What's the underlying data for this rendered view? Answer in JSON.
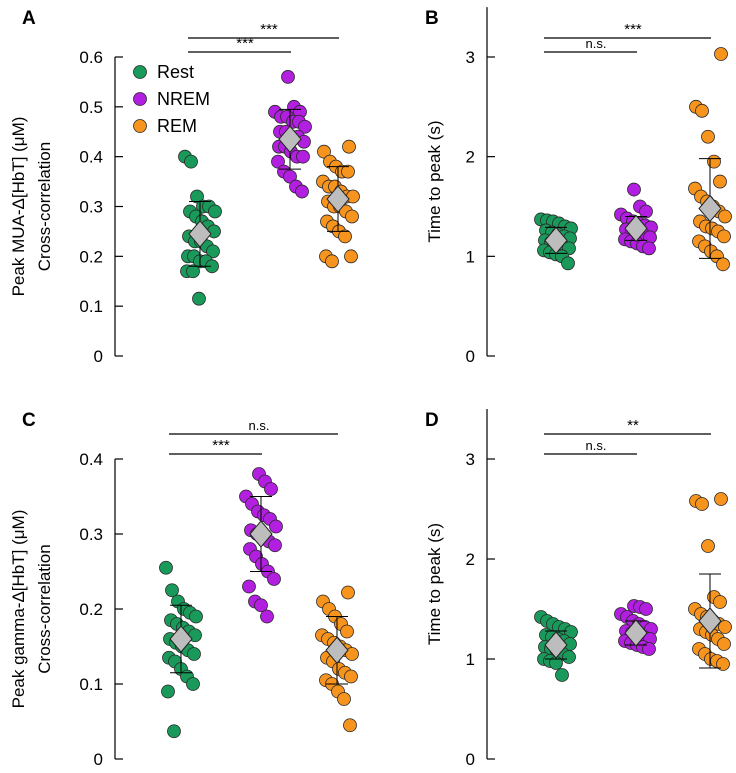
{
  "colors": {
    "rest": "#1a9a5a",
    "nrem": "#b21fe0",
    "rem": "#f7941d",
    "mean_marker": "#bdbdbd",
    "axis": "#000000"
  },
  "legend": {
    "entries": [
      {
        "label": "Rest",
        "color": "#1a9a5a"
      },
      {
        "label": "NREM",
        "color": "#b21fe0"
      },
      {
        "label": "REM",
        "color": "#f7941d"
      }
    ]
  },
  "chart_data": [
    {
      "panel_label": "A",
      "type": "scatter",
      "ylabel_line1": "Peak MUA-Δ[HbT] (μM)",
      "ylabel_line2": "Cross-correlation",
      "ylim": [
        0,
        0.6
      ],
      "yticks": [
        0,
        0.1,
        0.2,
        0.3,
        0.4,
        0.5,
        0.6
      ],
      "ytick_labels": [
        "0",
        "0.1",
        "0.2",
        "0.3",
        "0.4",
        "0.5",
        "0.6"
      ],
      "categories": [
        "Rest",
        "NREM",
        "REM"
      ],
      "series": [
        {
          "name": "Rest",
          "values": [
            0.4,
            0.39,
            0.32,
            0.3,
            0.3,
            0.29,
            0.29,
            0.28,
            0.27,
            0.26,
            0.25,
            0.24,
            0.23,
            0.23,
            0.22,
            0.21,
            0.2,
            0.2,
            0.19,
            0.19,
            0.18,
            0.17,
            0.17,
            0.115
          ],
          "mean": 0.245,
          "err": 0.065
        },
        {
          "name": "NREM",
          "values": [
            0.56,
            0.5,
            0.49,
            0.49,
            0.48,
            0.48,
            0.47,
            0.47,
            0.46,
            0.45,
            0.45,
            0.44,
            0.44,
            0.43,
            0.42,
            0.42,
            0.41,
            0.4,
            0.4,
            0.39,
            0.37,
            0.36,
            0.34,
            0.33
          ],
          "mean": 0.435,
          "err": 0.06
        },
        {
          "name": "REM",
          "values": [
            0.42,
            0.41,
            0.39,
            0.38,
            0.37,
            0.37,
            0.35,
            0.34,
            0.34,
            0.33,
            0.32,
            0.32,
            0.31,
            0.3,
            0.3,
            0.29,
            0.28,
            0.27,
            0.26,
            0.25,
            0.24,
            0.2,
            0.2,
            0.19
          ],
          "mean": 0.315,
          "err": 0.065
        }
      ],
      "comparisons": [
        {
          "from": 0,
          "to": 1,
          "label": "***",
          "level": 0
        },
        {
          "from": 0,
          "to": 2,
          "label": "***",
          "level": 1
        }
      ]
    },
    {
      "panel_label": "B",
      "type": "scatter",
      "ylabel_line1": "Time to peak (s)",
      "ylabel_line2": "",
      "ylim": [
        0,
        3.5
      ],
      "yticks": [
        0,
        1,
        2,
        3
      ],
      "ytick_labels": [
        "0",
        "1",
        "2",
        "3"
      ],
      "categories": [
        "Rest",
        "NREM",
        "REM"
      ],
      "series": [
        {
          "name": "Rest",
          "values": [
            1.37,
            1.36,
            1.35,
            1.33,
            1.3,
            1.28,
            1.26,
            1.24,
            1.22,
            1.2,
            1.18,
            1.16,
            1.14,
            1.12,
            1.1,
            1.08,
            1.06,
            1.04,
            1.02,
            1.0,
            0.93
          ],
          "mean": 1.16,
          "err": 0.13
        },
        {
          "name": "NREM",
          "values": [
            1.67,
            1.5,
            1.45,
            1.42,
            1.38,
            1.35,
            1.33,
            1.31,
            1.29,
            1.27,
            1.25,
            1.23,
            1.21,
            1.19,
            1.17,
            1.15,
            1.13,
            1.1,
            1.08
          ],
          "mean": 1.28,
          "err": 0.12
        },
        {
          "name": "REM",
          "values": [
            3.03,
            2.5,
            2.46,
            2.2,
            1.95,
            1.75,
            1.68,
            1.6,
            1.55,
            1.5,
            1.45,
            1.4,
            1.35,
            1.3,
            1.28,
            1.25,
            1.2,
            1.15,
            1.1,
            1.05,
            1.0,
            0.92
          ],
          "mean": 1.48,
          "err": 0.5
        }
      ],
      "comparisons": [
        {
          "from": 0,
          "to": 1,
          "label": "n.s.",
          "level": 0
        },
        {
          "from": 0,
          "to": 2,
          "label": "***",
          "level": 1
        }
      ]
    },
    {
      "panel_label": "C",
      "type": "scatter",
      "ylabel_line1": "Peak gamma-Δ[HbT] (μM)",
      "ylabel_line2": "Cross-correlation",
      "ylim": [
        0,
        0.4
      ],
      "yticks": [
        0,
        0.1,
        0.2,
        0.3,
        0.4
      ],
      "ytick_labels": [
        "0",
        "0.1",
        "0.2",
        "0.3",
        "0.4"
      ],
      "categories": [
        "Rest",
        "NREM",
        "REM"
      ],
      "series": [
        {
          "name": "Rest",
          "values": [
            0.255,
            0.225,
            0.21,
            0.2,
            0.195,
            0.19,
            0.185,
            0.18,
            0.175,
            0.17,
            0.165,
            0.16,
            0.155,
            0.15,
            0.145,
            0.14,
            0.135,
            0.13,
            0.12,
            0.11,
            0.1,
            0.09,
            0.037
          ],
          "mean": 0.16,
          "err": 0.045
        },
        {
          "name": "NREM",
          "values": [
            0.38,
            0.37,
            0.36,
            0.35,
            0.34,
            0.33,
            0.325,
            0.32,
            0.31,
            0.305,
            0.3,
            0.295,
            0.29,
            0.285,
            0.28,
            0.27,
            0.26,
            0.25,
            0.24,
            0.23,
            0.21,
            0.205,
            0.19
          ],
          "mean": 0.3,
          "err": 0.05
        },
        {
          "name": "REM",
          "values": [
            0.222,
            0.21,
            0.2,
            0.19,
            0.18,
            0.17,
            0.165,
            0.16,
            0.155,
            0.15,
            0.145,
            0.14,
            0.135,
            0.13,
            0.12,
            0.115,
            0.11,
            0.105,
            0.1,
            0.09,
            0.08,
            0.045
          ],
          "mean": 0.145,
          "err": 0.045
        }
      ],
      "comparisons": [
        {
          "from": 0,
          "to": 1,
          "label": "***",
          "level": 0
        },
        {
          "from": 0,
          "to": 2,
          "label": "n.s.",
          "level": 1
        }
      ]
    },
    {
      "panel_label": "D",
      "type": "scatter",
      "ylabel_line1": "Time to peak (s)",
      "ylabel_line2": "",
      "ylim": [
        0,
        3.5
      ],
      "yticks": [
        0,
        1,
        2,
        3
      ],
      "ytick_labels": [
        "0",
        "1",
        "2",
        "3"
      ],
      "categories": [
        "Rest",
        "NREM",
        "REM"
      ],
      "series": [
        {
          "name": "Rest",
          "values": [
            1.42,
            1.38,
            1.35,
            1.32,
            1.3,
            1.27,
            1.24,
            1.22,
            1.2,
            1.18,
            1.15,
            1.12,
            1.1,
            1.08,
            1.05,
            1.02,
            1.0,
            0.98,
            0.96,
            0.84
          ],
          "mean": 1.14,
          "err": 0.14
        },
        {
          "name": "NREM",
          "values": [
            1.53,
            1.52,
            1.5,
            1.45,
            1.42,
            1.38,
            1.35,
            1.32,
            1.3,
            1.28,
            1.26,
            1.24,
            1.22,
            1.2,
            1.18,
            1.16,
            1.14,
            1.12,
            1.1
          ],
          "mean": 1.26,
          "err": 0.12
        },
        {
          "name": "REM",
          "values": [
            2.6,
            2.58,
            2.55,
            2.13,
            1.62,
            1.57,
            1.5,
            1.45,
            1.42,
            1.38,
            1.35,
            1.32,
            1.3,
            1.27,
            1.24,
            1.2,
            1.15,
            1.1,
            1.05,
            1.0,
            0.98,
            0.95
          ],
          "mean": 1.38,
          "err": 0.47
        }
      ],
      "comparisons": [
        {
          "from": 0,
          "to": 1,
          "label": "n.s.",
          "level": 0
        },
        {
          "from": 0,
          "to": 2,
          "label": "**",
          "level": 1
        }
      ]
    }
  ]
}
